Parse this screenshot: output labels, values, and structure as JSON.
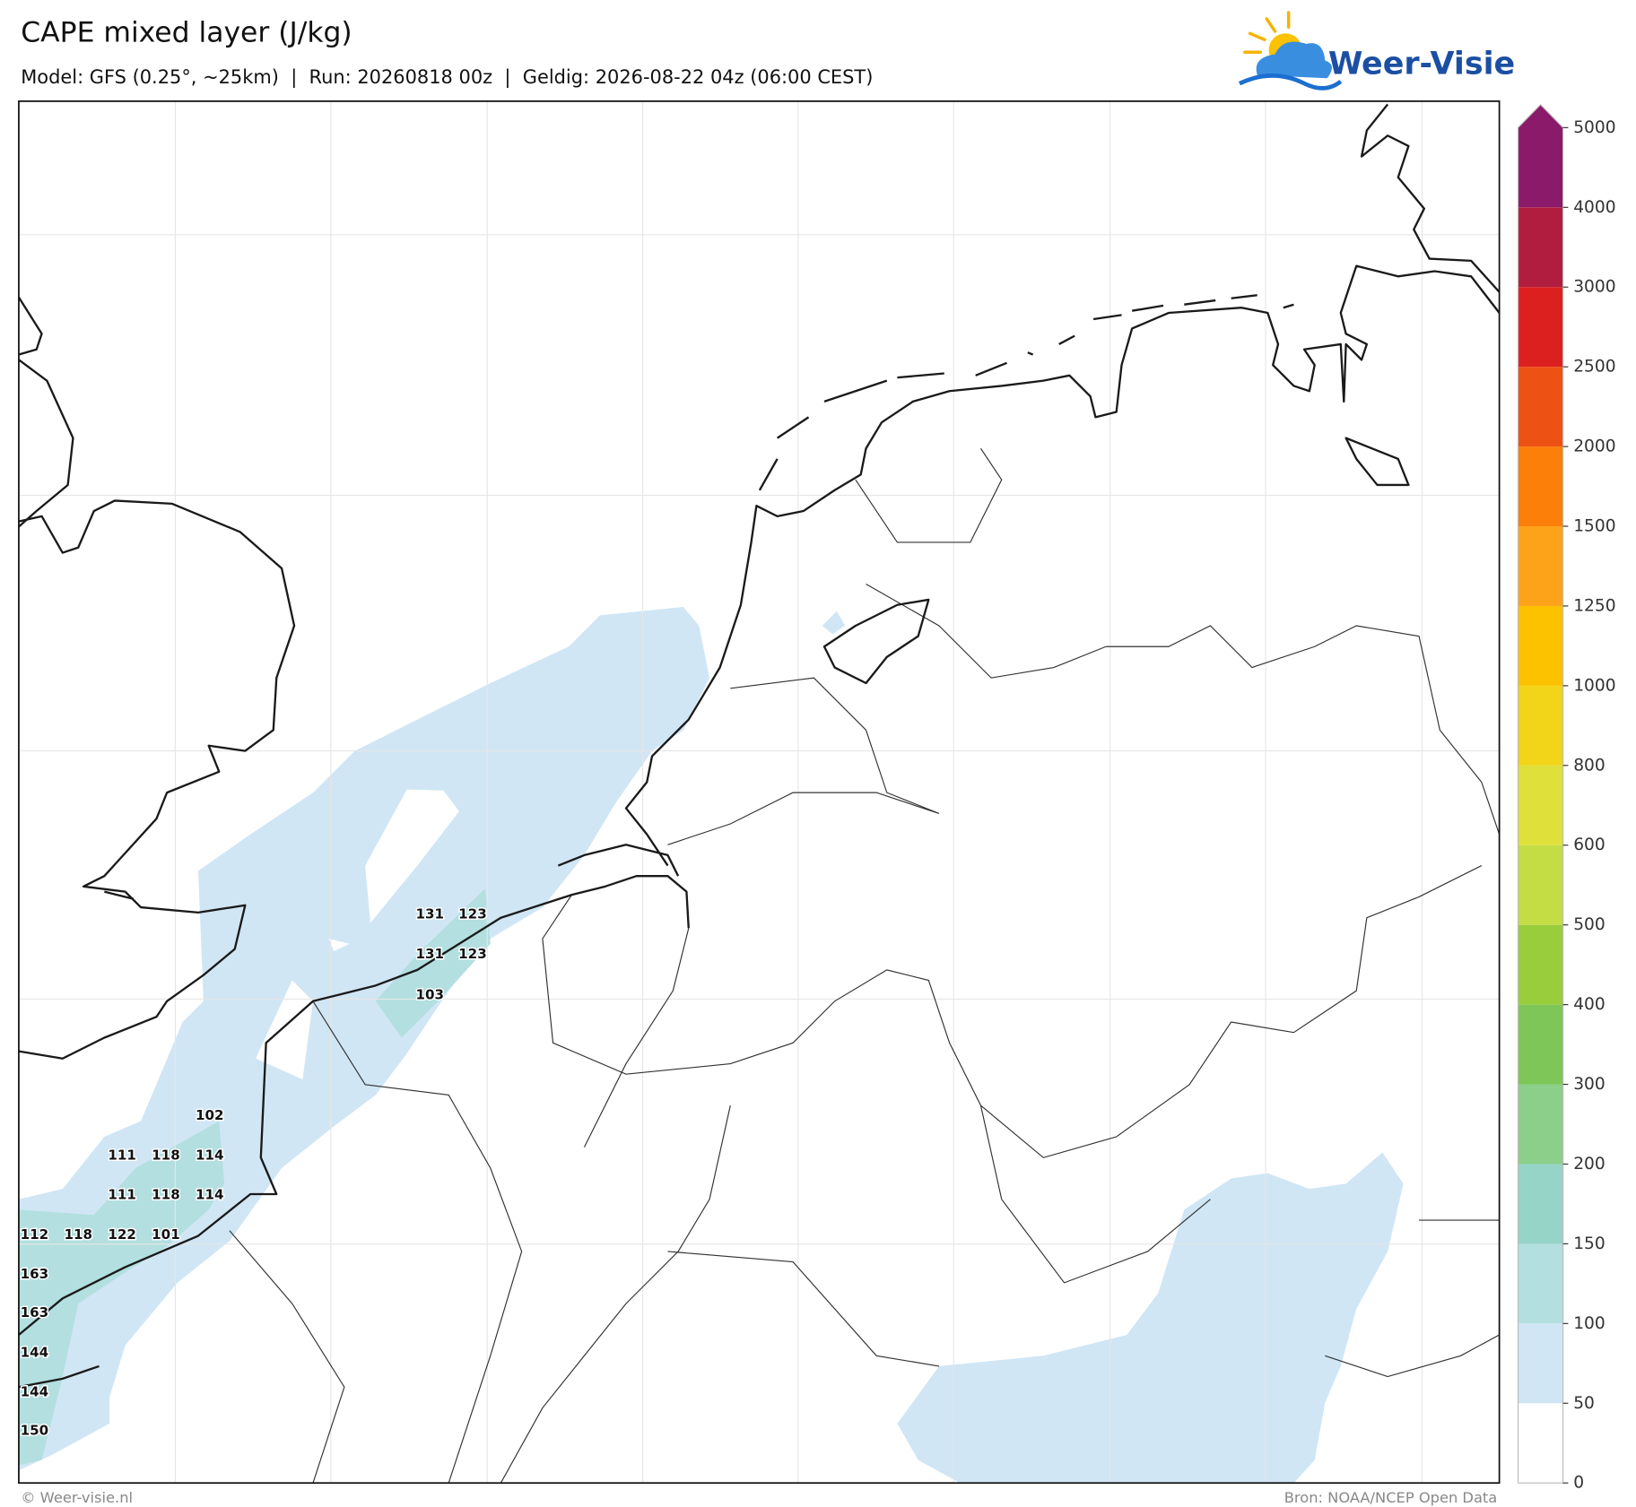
{
  "header": {
    "title": "CAPE mixed layer (J/kg)",
    "subtitle": "Model: GFS (0.25°, ~25km)  |  Run: 20260818 00z  |  Geldig: 2026-08-22 04z (06:00 CEST)"
  },
  "logo": {
    "text": "Weer-Visie"
  },
  "colorbar": {
    "ticks": [
      0,
      50,
      100,
      150,
      200,
      300,
      400,
      500,
      600,
      800,
      1000,
      1250,
      1500,
      2000,
      2500,
      3000,
      4000,
      5000
    ],
    "colors": [
      "#ffffff",
      "#d0e6f5",
      "#b3dfe0",
      "#96d4c8",
      "#8ccf8a",
      "#7dc657",
      "#9acd3c",
      "#c5dd45",
      "#dfe03a",
      "#f2d418",
      "#fcc200",
      "#fda31a",
      "#fc7f0a",
      "#ee5114",
      "#dc2020",
      "#b11d3f",
      "#8b1a6b"
    ]
  },
  "map": {
    "labels": [
      131,
      123,
      131,
      123,
      103,
      102,
      111,
      118,
      114,
      111,
      118,
      114,
      112,
      118,
      122,
      101,
      163,
      163,
      144,
      144,
      150
    ]
  },
  "footer": {
    "left": "© Weer-visie.nl",
    "right": "Bron: NOAA/NCEP Open Data"
  }
}
